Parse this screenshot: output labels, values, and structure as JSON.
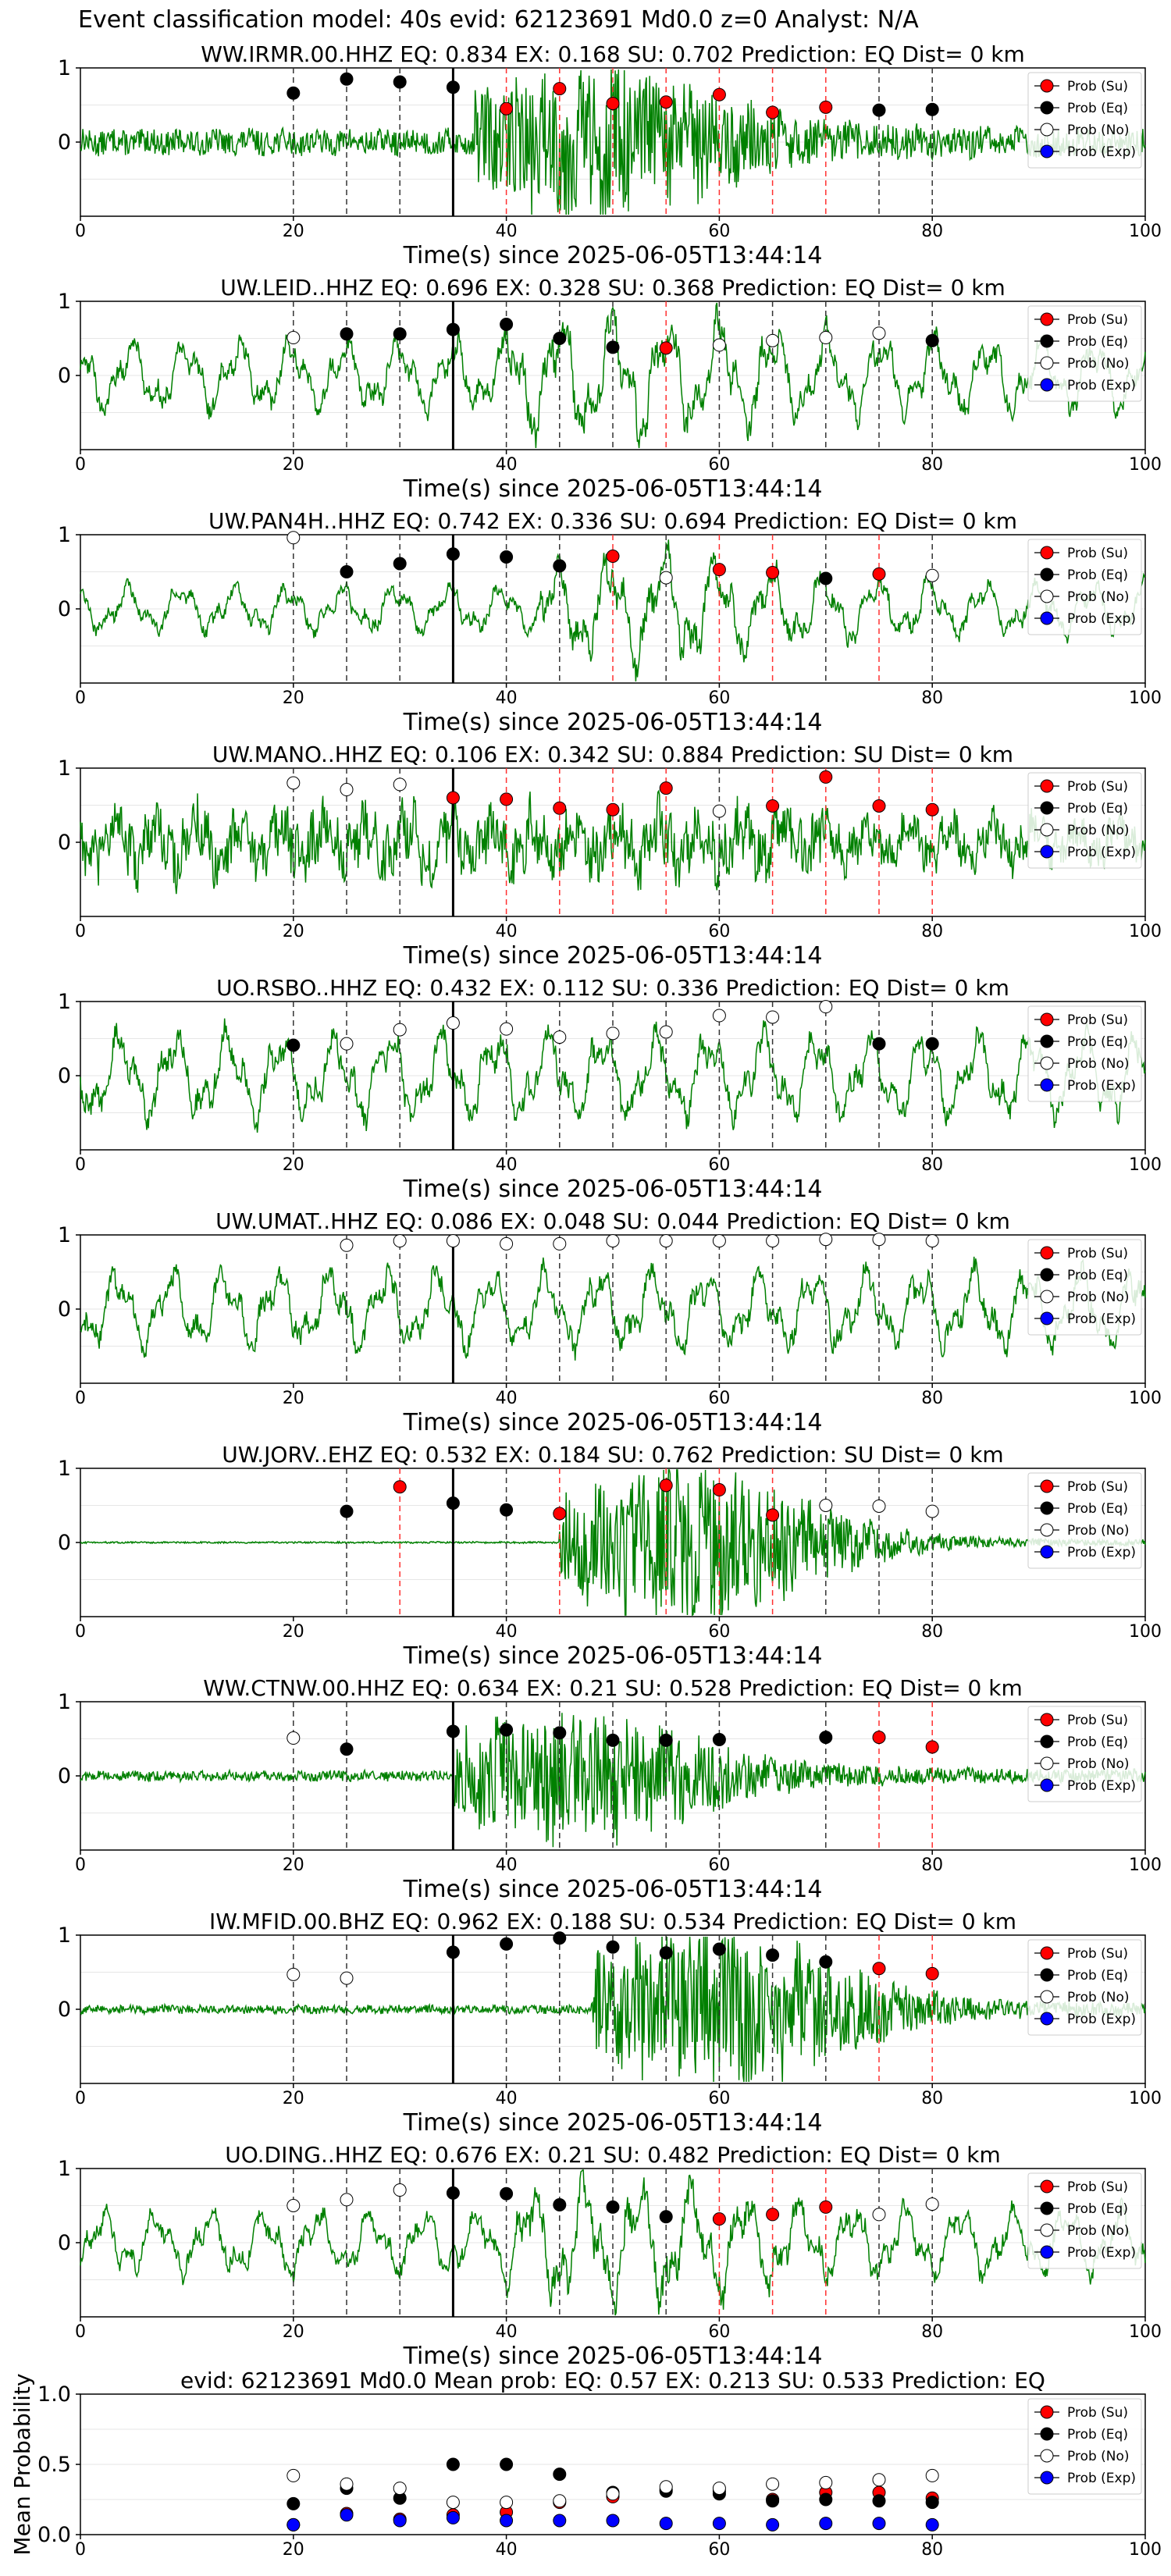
{
  "suptitle": "Event classification model: 40s evid: 62123691 Md0.0 z=0 Analyst: N/A",
  "legend_entries": [
    "Prob (Su)",
    "Prob (Eq)",
    "Prob (No)",
    "Prob (Exp)"
  ],
  "colors": {
    "wave": "#008000",
    "su": "#ff0000",
    "eq": "#000000",
    "no": "#ffffff",
    "exp": "#0000ff"
  },
  "chart_data": [
    {
      "type": "line",
      "title": "WW.IRMR.00.HHZ   EQ: 0.834   EX: 0.168   SU: 0.702   Prediction: EQ    Dist= 0 km",
      "xlabel": "Time(s) since 2025-06-05T13:44:14",
      "ylabel": "",
      "xlim": [
        0,
        100
      ],
      "ylim": [
        -1,
        1
      ],
      "xticks": [
        "0",
        "20",
        "40",
        "60",
        "80",
        "100"
      ],
      "yticks": [
        "0",
        "1"
      ],
      "grid": "y",
      "legend": "top-right",
      "waveform": {
        "style": "burst",
        "amplitude": 0.15,
        "burst_start": 37,
        "burst_peak": 0.8
      },
      "arrival_s": 35,
      "windows": [
        {
          "t": 20,
          "c": "Eq",
          "p": 0.66
        },
        {
          "t": 25,
          "c": "Eq",
          "p": 0.85
        },
        {
          "t": 30,
          "c": "Eq",
          "p": 0.81
        },
        {
          "t": 35,
          "c": "Eq",
          "p": 0.74
        },
        {
          "t": 40,
          "c": "Su",
          "p": 0.45
        },
        {
          "t": 45,
          "c": "Su",
          "p": 0.72
        },
        {
          "t": 50,
          "c": "Su",
          "p": 0.52
        },
        {
          "t": 55,
          "c": "Su",
          "p": 0.54
        },
        {
          "t": 60,
          "c": "Su",
          "p": 0.64
        },
        {
          "t": 65,
          "c": "Su",
          "p": 0.4
        },
        {
          "t": 70,
          "c": "Su",
          "p": 0.47
        },
        {
          "t": 75,
          "c": "Eq",
          "p": 0.43
        },
        {
          "t": 80,
          "c": "Eq",
          "p": 0.44
        }
      ]
    },
    {
      "type": "line",
      "title": "UW.LEID..HHZ   EQ: 0.696  EX: 0.328  SU: 0.368   Prediction: EQ    Dist= 0 km",
      "xlabel": "Time(s) since 2025-06-05T13:44:14",
      "ylabel": "",
      "xlim": [
        0,
        100
      ],
      "ylim": [
        -1,
        1
      ],
      "xticks": [
        "0",
        "20",
        "40",
        "60",
        "80",
        "100"
      ],
      "yticks": [
        "0",
        "1"
      ],
      "grid": "y",
      "legend": "top-right",
      "waveform": {
        "style": "oscillation",
        "amplitude": 0.45,
        "burst_start": 40,
        "burst_peak": 0.7
      },
      "arrival_s": 35,
      "windows": [
        {
          "t": 20,
          "c": "No",
          "p": 0.51
        },
        {
          "t": 25,
          "c": "Eq",
          "p": 0.56
        },
        {
          "t": 30,
          "c": "Eq",
          "p": 0.56
        },
        {
          "t": 35,
          "c": "Eq",
          "p": 0.62
        },
        {
          "t": 40,
          "c": "Eq",
          "p": 0.69
        },
        {
          "t": 45,
          "c": "Eq",
          "p": 0.5
        },
        {
          "t": 50,
          "c": "Eq",
          "p": 0.38
        },
        {
          "t": 55,
          "c": "Su",
          "p": 0.37
        },
        {
          "t": 60,
          "c": "No",
          "p": 0.41
        },
        {
          "t": 65,
          "c": "No",
          "p": 0.47
        },
        {
          "t": 70,
          "c": "No",
          "p": 0.51
        },
        {
          "t": 75,
          "c": "No",
          "p": 0.57
        },
        {
          "t": 80,
          "c": "Eq",
          "p": 0.47
        }
      ]
    },
    {
      "type": "line",
      "title": "UW.PAN4H..HHZ   EQ: 0.742  EX: 0.336  SU: 0.694   Prediction: EQ    Dist= 0 km",
      "xlabel": "Time(s) since 2025-06-05T13:44:14",
      "ylabel": "",
      "xlim": [
        0,
        100
      ],
      "ylim": [
        -1,
        1
      ],
      "xticks": [
        "0",
        "20",
        "40",
        "60",
        "80",
        "100"
      ],
      "yticks": [
        "0",
        "1"
      ],
      "grid": "y",
      "legend": "top-right",
      "waveform": {
        "style": "oscillation",
        "amplitude": 0.3,
        "burst_start": 43,
        "burst_peak": 0.6
      },
      "arrival_s": 35,
      "windows": [
        {
          "t": 20,
          "c": "No",
          "p": 0.96
        },
        {
          "t": 25,
          "c": "Eq",
          "p": 0.5
        },
        {
          "t": 30,
          "c": "Eq",
          "p": 0.61
        },
        {
          "t": 35,
          "c": "Eq",
          "p": 0.74
        },
        {
          "t": 40,
          "c": "Eq",
          "p": 0.7
        },
        {
          "t": 45,
          "c": "Eq",
          "p": 0.58
        },
        {
          "t": 50,
          "c": "Su",
          "p": 0.71
        },
        {
          "t": 55,
          "c": "No",
          "p": 0.42
        },
        {
          "t": 60,
          "c": "Su",
          "p": 0.53
        },
        {
          "t": 65,
          "c": "Su",
          "p": 0.49
        },
        {
          "t": 70,
          "c": "Eq",
          "p": 0.41
        },
        {
          "t": 75,
          "c": "Su",
          "p": 0.47
        },
        {
          "t": 80,
          "c": "No",
          "p": 0.45
        }
      ]
    },
    {
      "type": "line",
      "title": "UW.MANO..HHZ   EQ: 0.106  EX: 0.342  SU: 0.884   Prediction: SU    Dist= 0 km",
      "xlabel": "Time(s) since 2025-06-05T13:44:14",
      "ylabel": "",
      "xlim": [
        0,
        100
      ],
      "ylim": [
        -1,
        1
      ],
      "xticks": [
        "0",
        "20",
        "40",
        "60",
        "80",
        "100"
      ],
      "yticks": [
        "0",
        "1"
      ],
      "grid": "y",
      "legend": "top-right",
      "waveform": {
        "style": "noisy",
        "amplitude": 0.5,
        "burst_start": 0,
        "burst_peak": 0.5
      },
      "arrival_s": 35,
      "windows": [
        {
          "t": 20,
          "c": "No",
          "p": 0.8
        },
        {
          "t": 25,
          "c": "No",
          "p": 0.71
        },
        {
          "t": 30,
          "c": "No",
          "p": 0.78
        },
        {
          "t": 35,
          "c": "Su",
          "p": 0.6
        },
        {
          "t": 40,
          "c": "Su",
          "p": 0.58
        },
        {
          "t": 45,
          "c": "Su",
          "p": 0.46
        },
        {
          "t": 50,
          "c": "Su",
          "p": 0.44
        },
        {
          "t": 55,
          "c": "Su",
          "p": 0.73
        },
        {
          "t": 60,
          "c": "No",
          "p": 0.42
        },
        {
          "t": 65,
          "c": "Su",
          "p": 0.49
        },
        {
          "t": 70,
          "c": "Su",
          "p": 0.88
        },
        {
          "t": 75,
          "c": "Su",
          "p": 0.49
        },
        {
          "t": 80,
          "c": "Su",
          "p": 0.44
        }
      ]
    },
    {
      "type": "line",
      "title": "UO.RSBO..HHZ   EQ: 0.432  EX: 0.112  SU: 0.336   Prediction: EQ    Dist= 0 km",
      "xlabel": "Time(s) since 2025-06-05T13:44:14",
      "ylabel": "",
      "xlim": [
        0,
        100
      ],
      "ylim": [
        -1,
        1
      ],
      "xticks": [
        "0",
        "20",
        "40",
        "60",
        "80",
        "100"
      ],
      "yticks": [
        "0",
        "1"
      ],
      "grid": "y",
      "legend": "top-right",
      "waveform": {
        "style": "oscillation",
        "amplitude": 0.55,
        "burst_start": 0,
        "burst_peak": 0.55
      },
      "arrival_s": 35,
      "windows": [
        {
          "t": 20,
          "c": "Eq",
          "p": 0.41
        },
        {
          "t": 25,
          "c": "No",
          "p": 0.43
        },
        {
          "t": 30,
          "c": "No",
          "p": 0.62
        },
        {
          "t": 35,
          "c": "No",
          "p": 0.71
        },
        {
          "t": 40,
          "c": "No",
          "p": 0.63
        },
        {
          "t": 45,
          "c": "No",
          "p": 0.52
        },
        {
          "t": 50,
          "c": "No",
          "p": 0.57
        },
        {
          "t": 55,
          "c": "No",
          "p": 0.59
        },
        {
          "t": 60,
          "c": "No",
          "p": 0.81
        },
        {
          "t": 65,
          "c": "No",
          "p": 0.79
        },
        {
          "t": 70,
          "c": "No",
          "p": 0.93
        },
        {
          "t": 75,
          "c": "Eq",
          "p": 0.43
        },
        {
          "t": 80,
          "c": "Eq",
          "p": 0.43
        }
      ]
    },
    {
      "type": "line",
      "title": "UW.UMAT..HHZ   EQ: 0.086  EX: 0.048  SU: 0.044   Prediction: EQ    Dist= 0 km",
      "xlabel": "Time(s) since 2025-06-05T13:44:14",
      "ylabel": "",
      "xlim": [
        0,
        100
      ],
      "ylim": [
        -1,
        1
      ],
      "xticks": [
        "0",
        "20",
        "40",
        "60",
        "80",
        "100"
      ],
      "yticks": [
        "0",
        "1"
      ],
      "grid": "y",
      "legend": "top-right",
      "waveform": {
        "style": "oscillation",
        "amplitude": 0.5,
        "burst_start": 0,
        "burst_peak": 0.5
      },
      "arrival_s": 35,
      "windows": [
        {
          "t": 25,
          "c": "No",
          "p": 0.86
        },
        {
          "t": 30,
          "c": "No",
          "p": 0.92
        },
        {
          "t": 35,
          "c": "No",
          "p": 0.92
        },
        {
          "t": 40,
          "c": "No",
          "p": 0.88
        },
        {
          "t": 45,
          "c": "No",
          "p": 0.88
        },
        {
          "t": 50,
          "c": "No",
          "p": 0.92
        },
        {
          "t": 55,
          "c": "No",
          "p": 0.92
        },
        {
          "t": 60,
          "c": "No",
          "p": 0.92
        },
        {
          "t": 65,
          "c": "No",
          "p": 0.92
        },
        {
          "t": 70,
          "c": "No",
          "p": 0.94
        },
        {
          "t": 75,
          "c": "No",
          "p": 0.94
        },
        {
          "t": 80,
          "c": "No",
          "p": 0.92
        }
      ]
    },
    {
      "type": "line",
      "title": "UW.JORV..EHZ   EQ: 0.532  EX: 0.184  SU: 0.762   Prediction: SU    Dist= 0 km",
      "xlabel": "Time(s) since 2025-06-05T13:44:14",
      "ylabel": "",
      "xlim": [
        0,
        100
      ],
      "ylim": [
        -1,
        1
      ],
      "xticks": [
        "0",
        "20",
        "40",
        "60",
        "80",
        "100"
      ],
      "yticks": [
        "0",
        "1"
      ],
      "grid": "y",
      "legend": "top-right",
      "waveform": {
        "style": "burst",
        "amplitude": 0.01,
        "burst_start": 45,
        "burst_peak": 0.85
      },
      "arrival_s": 35,
      "windows": [
        {
          "t": 25,
          "c": "Eq",
          "p": 0.42
        },
        {
          "t": 30,
          "c": "Su",
          "p": 0.75
        },
        {
          "t": 35,
          "c": "Eq",
          "p": 0.53
        },
        {
          "t": 40,
          "c": "Eq",
          "p": 0.44
        },
        {
          "t": 45,
          "c": "Su",
          "p": 0.39
        },
        {
          "t": 55,
          "c": "Su",
          "p": 0.77
        },
        {
          "t": 60,
          "c": "Su",
          "p": 0.71
        },
        {
          "t": 65,
          "c": "Su",
          "p": 0.37
        },
        {
          "t": 70,
          "c": "No",
          "p": 0.5
        },
        {
          "t": 75,
          "c": "No",
          "p": 0.49
        },
        {
          "t": 80,
          "c": "No",
          "p": 0.42
        }
      ]
    },
    {
      "type": "line",
      "title": "WW.CTNW.00.HHZ   EQ: 0.634  EX: 0.21  SU: 0.528   Prediction: EQ    Dist= 0 km",
      "xlabel": "Time(s) since 2025-06-05T13:44:14",
      "ylabel": "",
      "xlim": [
        0,
        100
      ],
      "ylim": [
        -1,
        1
      ],
      "xticks": [
        "0",
        "20",
        "40",
        "60",
        "80",
        "100"
      ],
      "yticks": [
        "0",
        "1"
      ],
      "grid": "y",
      "legend": "top-right",
      "waveform": {
        "style": "burst",
        "amplitude": 0.06,
        "burst_start": 35,
        "burst_peak": 0.7
      },
      "arrival_s": 35,
      "windows": [
        {
          "t": 20,
          "c": "No",
          "p": 0.51
        },
        {
          "t": 25,
          "c": "Eq",
          "p": 0.36
        },
        {
          "t": 35,
          "c": "Eq",
          "p": 0.6
        },
        {
          "t": 40,
          "c": "Eq",
          "p": 0.62
        },
        {
          "t": 45,
          "c": "Eq",
          "p": 0.58
        },
        {
          "t": 50,
          "c": "Eq",
          "p": 0.48
        },
        {
          "t": 55,
          "c": "Eq",
          "p": 0.48
        },
        {
          "t": 60,
          "c": "Eq",
          "p": 0.49
        },
        {
          "t": 70,
          "c": "Eq",
          "p": 0.52
        },
        {
          "t": 75,
          "c": "Su",
          "p": 0.52
        },
        {
          "t": 80,
          "c": "Su",
          "p": 0.39
        }
      ]
    },
    {
      "type": "line",
      "title": "IW.MFID.00.BHZ   EQ: 0.962  EX: 0.188  SU: 0.534   Prediction: EQ    Dist= 0 km",
      "xlabel": "Time(s) since 2025-06-05T13:44:14",
      "ylabel": "",
      "xlim": [
        0,
        100
      ],
      "ylim": [
        -1,
        1
      ],
      "xticks": [
        "0",
        "20",
        "40",
        "60",
        "80",
        "100"
      ],
      "yticks": [
        "0",
        "1"
      ],
      "grid": "y",
      "legend": "top-right",
      "waveform": {
        "style": "burst",
        "amplitude": 0.05,
        "burst_start": 48,
        "burst_peak": 0.9
      },
      "arrival_s": 35,
      "windows": [
        {
          "t": 20,
          "c": "No",
          "p": 0.47
        },
        {
          "t": 25,
          "c": "No",
          "p": 0.42
        },
        {
          "t": 35,
          "c": "Eq",
          "p": 0.77
        },
        {
          "t": 40,
          "c": "Eq",
          "p": 0.88
        },
        {
          "t": 45,
          "c": "Eq",
          "p": 0.96
        },
        {
          "t": 50,
          "c": "Eq",
          "p": 0.84
        },
        {
          "t": 55,
          "c": "Eq",
          "p": 0.76
        },
        {
          "t": 60,
          "c": "Eq",
          "p": 0.81
        },
        {
          "t": 65,
          "c": "Eq",
          "p": 0.73
        },
        {
          "t": 70,
          "c": "Eq",
          "p": 0.64
        },
        {
          "t": 75,
          "c": "Su",
          "p": 0.55
        },
        {
          "t": 80,
          "c": "Su",
          "p": 0.48
        }
      ]
    },
    {
      "type": "line",
      "title": "UO.DING..HHZ   EQ: 0.676  EX: 0.21  SU: 0.482   Prediction: EQ    Dist= 0 km",
      "xlabel": "Time(s) since 2025-06-05T13:44:14",
      "ylabel": "",
      "xlim": [
        0,
        100
      ],
      "ylim": [
        -1,
        1
      ],
      "xticks": [
        "0",
        "20",
        "40",
        "60",
        "80",
        "100"
      ],
      "yticks": [
        "0",
        "1"
      ],
      "grid": "y",
      "legend": "top-right",
      "waveform": {
        "style": "oscillation",
        "amplitude": 0.4,
        "burst_start": 40,
        "burst_peak": 0.7
      },
      "arrival_s": 35,
      "windows": [
        {
          "t": 20,
          "c": "No",
          "p": 0.5
        },
        {
          "t": 25,
          "c": "No",
          "p": 0.58
        },
        {
          "t": 30,
          "c": "No",
          "p": 0.71
        },
        {
          "t": 35,
          "c": "Eq",
          "p": 0.67
        },
        {
          "t": 40,
          "c": "Eq",
          "p": 0.66
        },
        {
          "t": 45,
          "c": "Eq",
          "p": 0.51
        },
        {
          "t": 50,
          "c": "Eq",
          "p": 0.48
        },
        {
          "t": 55,
          "c": "Eq",
          "p": 0.35
        },
        {
          "t": 60,
          "c": "Su",
          "p": 0.32
        },
        {
          "t": 65,
          "c": "Su",
          "p": 0.38
        },
        {
          "t": 70,
          "c": "Su",
          "p": 0.48
        },
        {
          "t": 75,
          "c": "No",
          "p": 0.38
        },
        {
          "t": 80,
          "c": "No",
          "p": 0.52
        }
      ]
    },
    {
      "type": "scatter",
      "title": "evid: 62123691  Md0.0   Mean prob:   EQ: 0.57  EX: 0.213  SU: 0.533   Prediction: EQ",
      "xlabel": "",
      "ylabel": "Mean Probability",
      "xlim": [
        0,
        100
      ],
      "ylim": [
        0,
        1
      ],
      "xticks": [
        "0",
        "20",
        "40",
        "60",
        "80",
        "100"
      ],
      "yticks": [
        "0.0",
        "0.5",
        "1.0"
      ],
      "grid": "y",
      "legend": "top-right",
      "x": [
        20,
        25,
        30,
        35,
        40,
        45,
        50,
        55,
        60,
        65,
        70,
        75,
        80
      ],
      "series": [
        {
          "name": "Prob (Su)",
          "values": [
            0.07,
            0.15,
            0.11,
            0.14,
            0.16,
            0.23,
            0.27,
            0.32,
            0.31,
            0.25,
            0.3,
            0.3,
            0.26
          ]
        },
        {
          "name": "Prob (Eq)",
          "values": [
            0.22,
            0.33,
            0.26,
            0.5,
            0.5,
            0.43,
            0.3,
            0.31,
            0.29,
            0.24,
            0.25,
            0.24,
            0.23
          ]
        },
        {
          "name": "Prob (No)",
          "values": [
            0.42,
            0.36,
            0.33,
            0.23,
            0.23,
            0.24,
            0.29,
            0.34,
            0.33,
            0.36,
            0.37,
            0.39,
            0.42
          ]
        },
        {
          "name": "Prob (Exp)",
          "values": [
            0.07,
            0.14,
            0.1,
            0.12,
            0.1,
            0.1,
            0.1,
            0.08,
            0.08,
            0.07,
            0.08,
            0.08,
            0.07
          ]
        }
      ]
    }
  ]
}
